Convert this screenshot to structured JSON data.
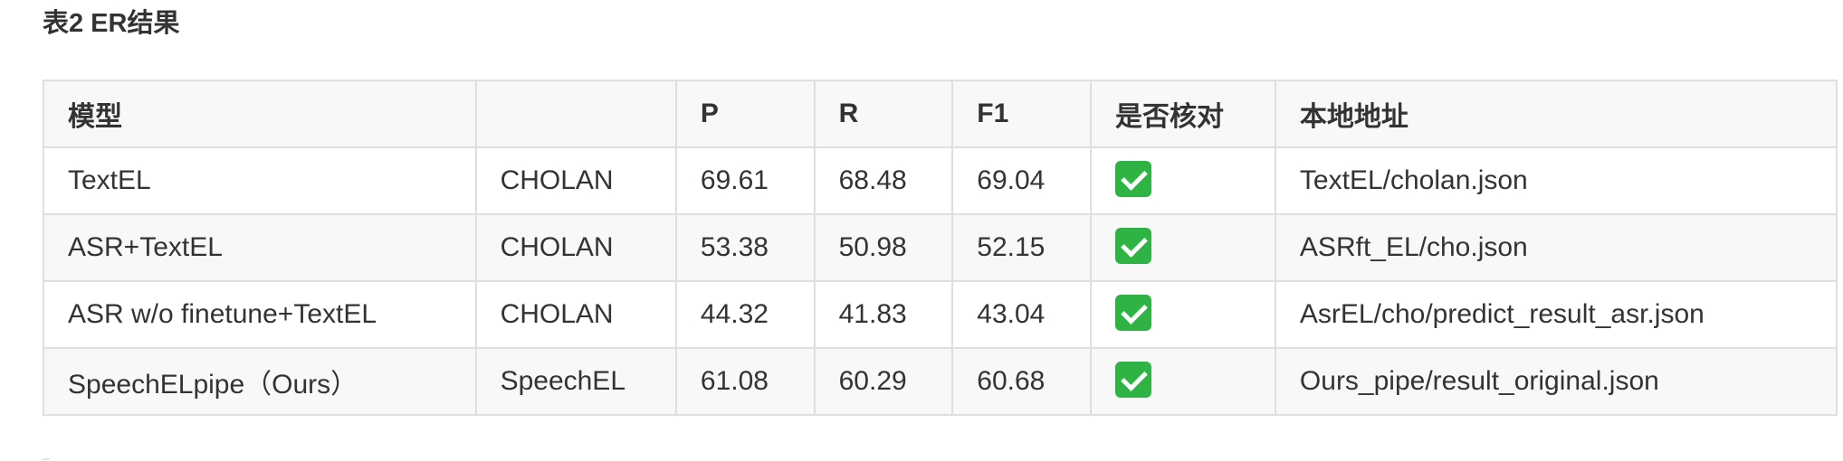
{
  "caption": "表2 ER结果",
  "table": {
    "headers": [
      "模型",
      "",
      "P",
      "R",
      "F1",
      "是否核对",
      "本地地址"
    ],
    "rows": [
      {
        "model": "TextEL",
        "method": "CHOLAN",
        "p": "69.61",
        "r": "68.48",
        "f1": "69.04",
        "checked_icon": "check-mark-icon",
        "path": "TextEL/cholan.json"
      },
      {
        "model": "ASR+TextEL",
        "method": "CHOLAN",
        "p": "53.38",
        "r": "50.98",
        "f1": "52.15",
        "checked_icon": "check-mark-icon",
        "path": "ASRft_EL/cho.json"
      },
      {
        "model": "ASR w/o finetune+TextEL",
        "method": "CHOLAN",
        "p": "44.32",
        "r": "41.83",
        "f1": "43.04",
        "checked_icon": "check-mark-icon",
        "path": "AsrEL/cho/predict_result_asr.json"
      },
      {
        "model": "SpeechELpipe（Ours）",
        "method": "SpeechEL",
        "p": "61.08",
        "r": "60.29",
        "f1": "60.68",
        "checked_icon": "check-mark-icon",
        "path": "Ours_pipe/result_original.json"
      }
    ]
  },
  "colors": {
    "border": "#dfdfdf",
    "header_bg": "#f8f8f8",
    "check_green": "#2fb344",
    "text": "#333333"
  }
}
